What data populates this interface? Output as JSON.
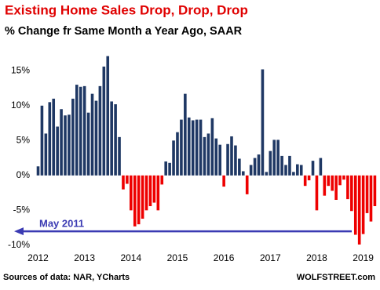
{
  "chart_data": {
    "type": "bar",
    "title": "Existing Home Sales Drop, Drop, Drop",
    "subtitle": "% Change fr Same Month a Year Ago, SAAR",
    "source": "Sources of data: NAR, YCharts",
    "brand": "WOLFSTREET.com",
    "annotation": {
      "text": "May 2011",
      "value": -8,
      "color": "#3b3bb3"
    },
    "categories": [
      "2012",
      null,
      null,
      null,
      null,
      null,
      null,
      null,
      null,
      null,
      null,
      null,
      "2013",
      null,
      null,
      null,
      null,
      null,
      null,
      null,
      null,
      null,
      null,
      null,
      "2014",
      null,
      null,
      null,
      null,
      null,
      null,
      null,
      null,
      null,
      null,
      null,
      "2015",
      null,
      null,
      null,
      null,
      null,
      null,
      null,
      null,
      null,
      null,
      null,
      "2016",
      null,
      null,
      null,
      null,
      null,
      null,
      null,
      null,
      null,
      null,
      null,
      "2017",
      null,
      null,
      null,
      null,
      null,
      null,
      null,
      null,
      null,
      null,
      null,
      "2018",
      null,
      null,
      null,
      null,
      null,
      null,
      null,
      null,
      null,
      null,
      null,
      "2019",
      null,
      null,
      null
    ],
    "values": [
      1.3,
      10,
      6,
      10.5,
      11,
      7,
      9.5,
      8.6,
      8.7,
      11,
      13,
      12.7,
      12.8,
      9,
      11.7,
      10.7,
      12.8,
      15.6,
      17.1,
      10.6,
      10.2,
      5.5,
      -2,
      -1.2,
      -5,
      -7.3,
      -7,
      -6.2,
      -5,
      -4.4,
      -3.9,
      -5,
      -1.3,
      2,
      1.8,
      5,
      6.2,
      8,
      11.7,
      8.3,
      7.9,
      8,
      8,
      5.5,
      6,
      8.2,
      5.3,
      4.4,
      -1.6,
      4.5,
      5.6,
      4.3,
      2.4,
      0.6,
      -2.7,
      1.5,
      2.5,
      3,
      15.2,
      0.5,
      3.5,
      5.1,
      5.1,
      2.8,
      1.5,
      2.8,
      0.5,
      1.6,
      1.5,
      -1.5,
      -0.7,
      2.1,
      -5,
      2.5,
      -2.9,
      -1.5,
      -2.2,
      -3.5,
      -1.4,
      -0.6,
      -3.4,
      -5.1,
      -8.5,
      -9.9,
      -8.4,
      -5.4,
      -6.6,
      -4.4
    ],
    "positive_color": "#1f3864",
    "negative_color": "#ee0000",
    "ylim": [
      -10.8,
      18.4
    ],
    "yticks": [
      {
        "value": -10,
        "label": "-10%"
      },
      {
        "value": -5,
        "label": "-5%"
      },
      {
        "value": 0,
        "label": "0%"
      },
      {
        "value": 5,
        "label": "5%"
      },
      {
        "value": 10,
        "label": "10%"
      },
      {
        "value": 15,
        "label": "15%"
      }
    ],
    "grid": false
  }
}
